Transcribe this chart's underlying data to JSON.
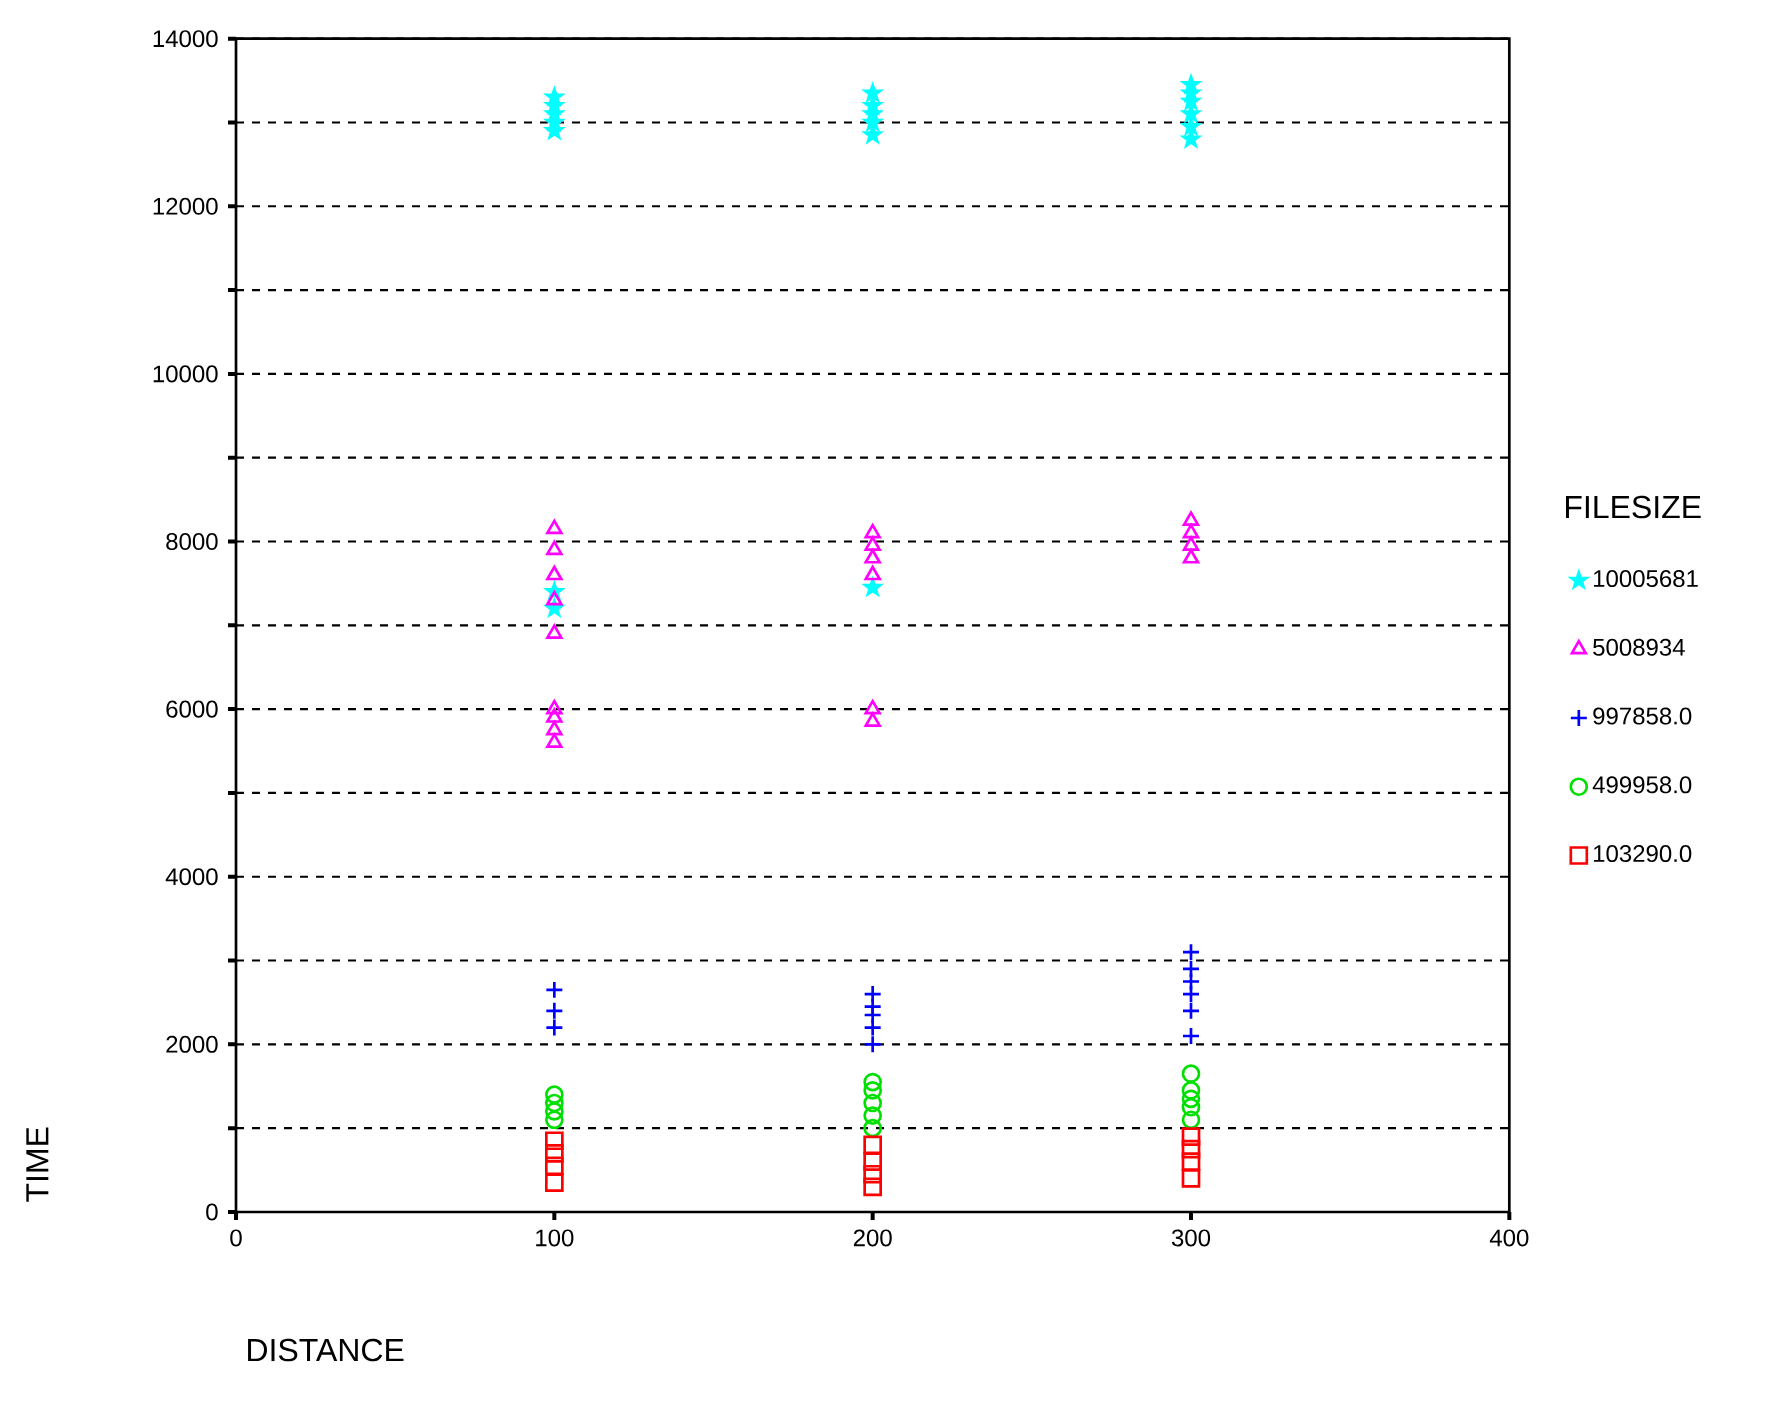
{
  "chart_data": {
    "type": "scatter",
    "xlabel": "DISTANCE",
    "ylabel": "TIME",
    "legend_title": "FILESIZE",
    "xlim": [
      0,
      400
    ],
    "xticks": [
      0,
      100,
      200,
      300,
      400
    ],
    "ylim": [
      0,
      14000
    ],
    "yticks": [
      0,
      {
        "value": 1000,
        "label": null
      },
      2000,
      {
        "value": 3000,
        "label": null
      },
      4000,
      {
        "value": 5000,
        "label": null
      },
      6000,
      {
        "value": 7000,
        "label": null
      },
      8000,
      {
        "value": 9000,
        "label": null
      },
      10000,
      {
        "value": 11000,
        "label": null
      },
      12000,
      {
        "value": 13000,
        "label": null
      },
      14000
    ],
    "grid": "y",
    "legend": "right",
    "series": [
      {
        "name": "10005681",
        "color": "#00ffff",
        "marker": "star",
        "x": [
          100,
          100,
          100,
          100,
          100,
          100,
          100,
          200,
          200,
          200,
          200,
          200,
          200,
          300,
          300,
          300,
          300,
          300,
          300
        ],
        "values": [
          12900,
          13000,
          13100,
          13200,
          13300,
          7200,
          7400,
          12850,
          13000,
          13100,
          13200,
          13350,
          7450,
          12800,
          12950,
          13100,
          13250,
          13350,
          13450
        ]
      },
      {
        "name": "5008934",
        "color": "#ff00ff",
        "marker": "triangle",
        "x": [
          100,
          100,
          100,
          100,
          100,
          100,
          100,
          100,
          100,
          200,
          200,
          200,
          200,
          200,
          200,
          300,
          300,
          300,
          300
        ],
        "values": [
          6900,
          7300,
          7600,
          7900,
          8150,
          5600,
          5750,
          5900,
          6000,
          7600,
          7800,
          7950,
          8100,
          5850,
          6000,
          7800,
          7950,
          8100,
          8250
        ]
      },
      {
        "name": "997858.0",
        "color": "#0000ff",
        "marker": "cross",
        "x": [
          100,
          100,
          100,
          200,
          200,
          200,
          200,
          200,
          300,
          300,
          300,
          300,
          300,
          300
        ],
        "values": [
          2200,
          2400,
          2650,
          2000,
          2200,
          2350,
          2450,
          2600,
          2100,
          2400,
          2600,
          2750,
          2900,
          3100
        ]
      },
      {
        "name": "499958.0",
        "color": "#00e000",
        "marker": "circle",
        "x": [
          100,
          100,
          100,
          100,
          200,
          200,
          200,
          200,
          200,
          300,
          300,
          300,
          300,
          300
        ],
        "values": [
          1100,
          1200,
          1300,
          1400,
          1000,
          1150,
          1300,
          1450,
          1550,
          1100,
          1250,
          1350,
          1450,
          1650
        ]
      },
      {
        "name": "103290.0",
        "color": "#ff0000",
        "marker": "square",
        "x": [
          100,
          100,
          100,
          100,
          200,
          200,
          200,
          200,
          300,
          300,
          300,
          300
        ],
        "values": [
          350,
          550,
          700,
          850,
          300,
          450,
          600,
          800,
          400,
          600,
          750,
          900
        ]
      }
    ]
  }
}
